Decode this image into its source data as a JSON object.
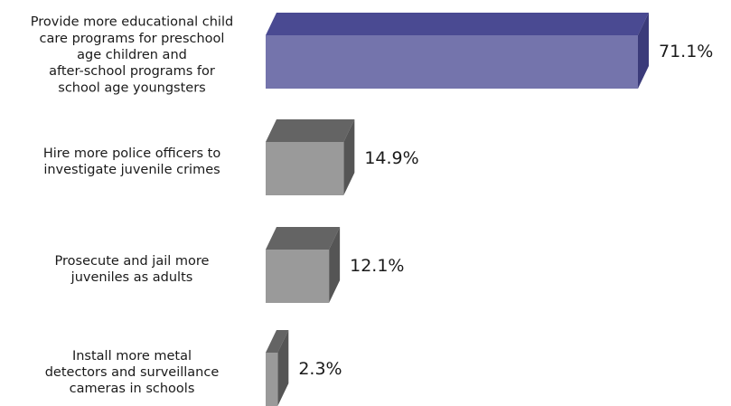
{
  "chart_data": {
    "type": "bar",
    "orientation": "horizontal",
    "style": "3d",
    "categories": [
      [
        "Provide more educational child",
        "care programs for preschool",
        "age children and",
        "after-school programs for",
        "school age youngsters"
      ],
      [
        "Hire more police officers to",
        "investigate juvenile crimes"
      ],
      [
        "Prosecute and jail more",
        "juveniles as adults"
      ],
      [
        "Install more metal",
        "detectors and surveillance",
        "cameras in schools"
      ]
    ],
    "values": [
      71.1,
      14.9,
      12.1,
      2.3
    ],
    "value_labels": [
      "71.1%",
      "14.9%",
      "12.1%",
      "2.3%"
    ],
    "xlim": [
      0,
      71.1
    ],
    "grid": false,
    "legend": "none",
    "colors": {
      "highlight": {
        "front": "#7474ac",
        "top": "#4a4a92",
        "side": "#3b3b7a"
      },
      "default": {
        "front": "#9a9a9a",
        "top": "#646464",
        "side": "#555555"
      }
    }
  }
}
